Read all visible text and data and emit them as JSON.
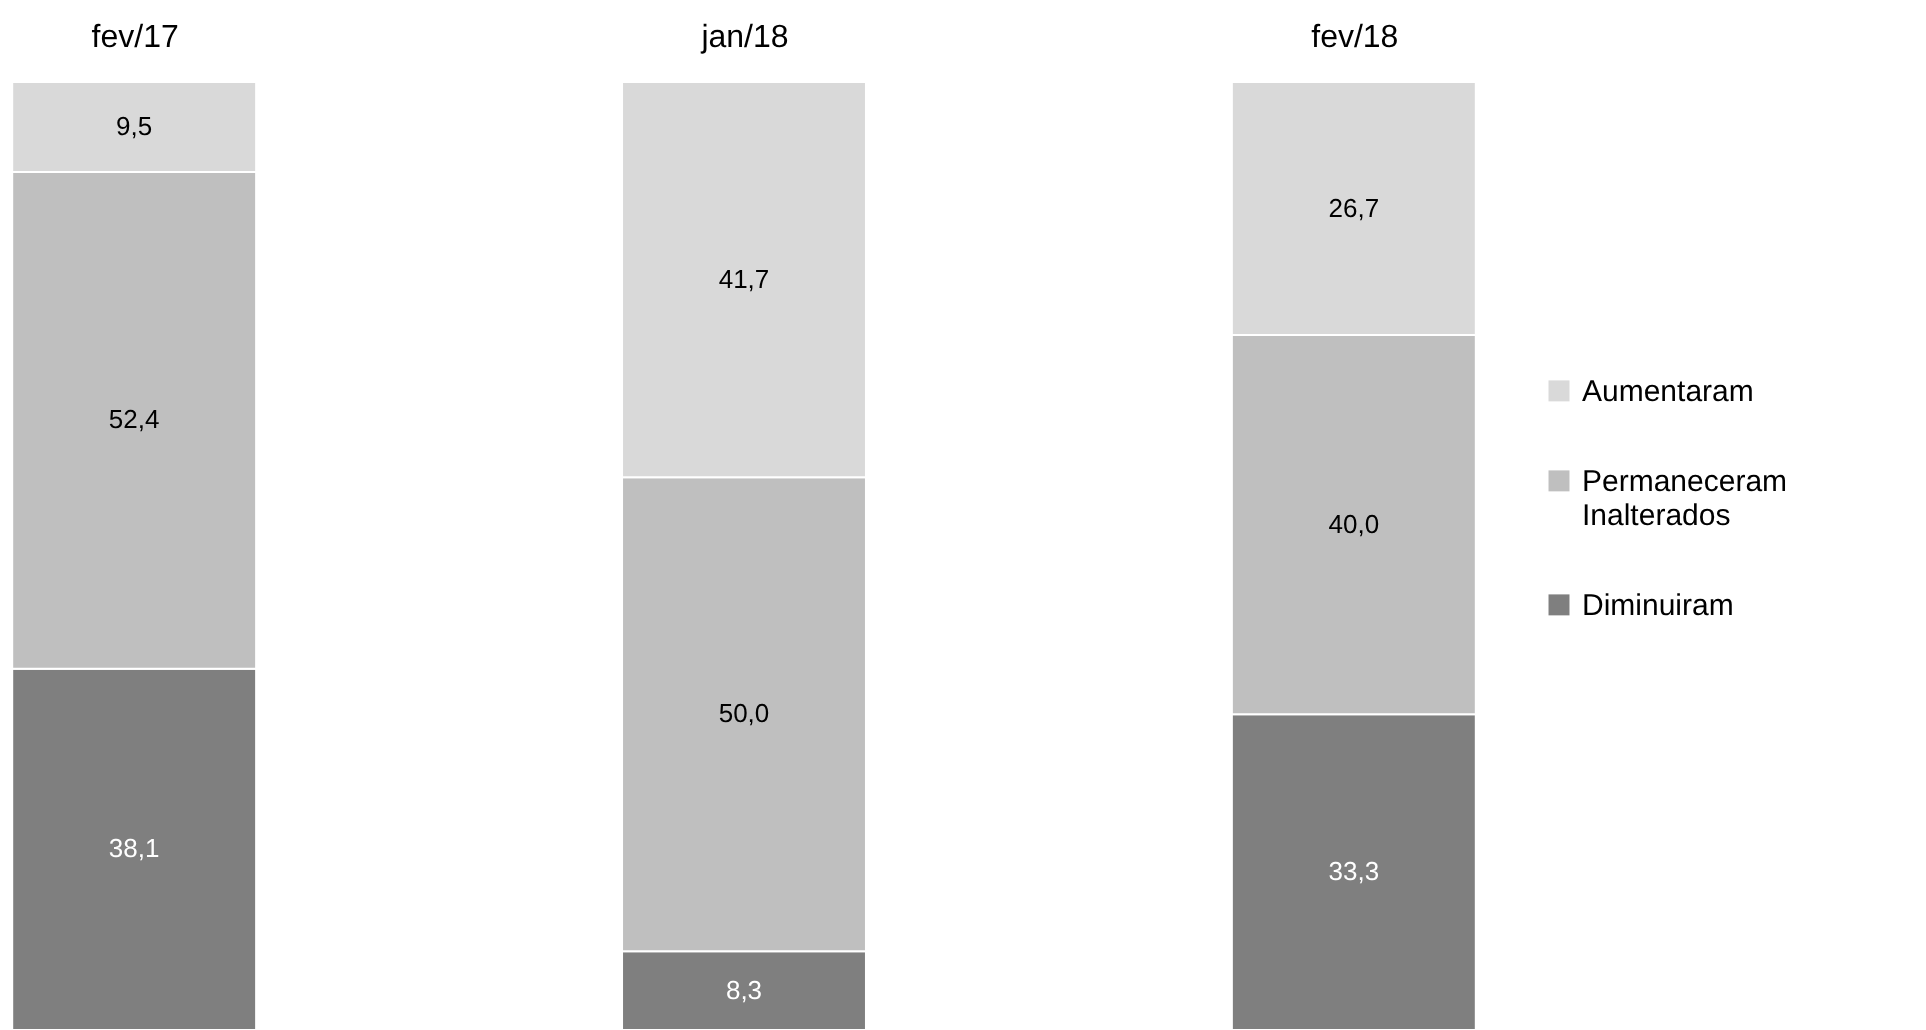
{
  "chart_data": {
    "type": "bar",
    "stacked": true,
    "categories": [
      "fev/17",
      "jan/18",
      "fev/18"
    ],
    "series": [
      {
        "name": "Diminuiram",
        "color": "#7f7f7f",
        "values": [
          38.1,
          8.3,
          33.3
        ],
        "value_labels": [
          "38,1",
          "8,3",
          "33,3"
        ]
      },
      {
        "name": "Permaneceram Inalterados",
        "color": "#bfbfbf",
        "values": [
          52.4,
          50.0,
          40.0
        ],
        "value_labels": [
          "52,4",
          "50,0",
          "40,0"
        ]
      },
      {
        "name": "Aumentaram",
        "color": "#d9d9d9",
        "values": [
          9.5,
          41.7,
          26.7
        ],
        "value_labels": [
          "9,5",
          "41,7",
          "26,7"
        ]
      }
    ],
    "ylim": [
      0,
      100
    ],
    "tick_labels": "x",
    "legend": "right"
  }
}
